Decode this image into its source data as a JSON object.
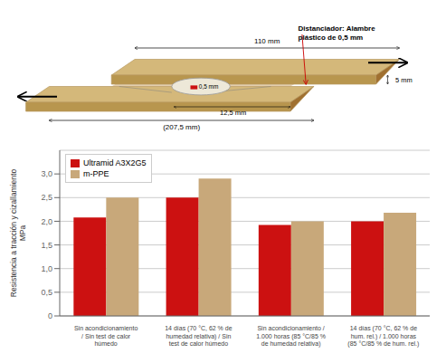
{
  "chart_data": {
    "type": "bar",
    "ylabel": "Resistencia a tracción y cizallamiento\nMPa",
    "categories": [
      "Sin acondicionamiento\n/ Sin test de calor\nhúmedo",
      "14 días (70 °C, 62 % de\nhumedad relativa) / Sin\ntest de calor húmedo",
      "Sin acondicionamiento /\n1.000 horas (85 °C/85 %\nde humedad relativa)",
      "14 días (70 °C, 62 % de\nhum. rel.) / 1.000 horas\n(85 °C/85 % de hum. rel.)"
    ],
    "series": [
      {
        "name": "Ultramid A3X2G5",
        "color": "#cc1111",
        "values": [
          2.08,
          2.5,
          1.92,
          2.0
        ]
      },
      {
        "name": "m-PPE",
        "color": "#c8a87a",
        "values": [
          2.5,
          2.9,
          2.0,
          2.18
        ]
      }
    ],
    "ylim": [
      0,
      3.5
    ],
    "yticks": [
      0,
      {
        "value": 0.5,
        "label": "0,5"
      },
      {
        "value": 1.0,
        "label": "1,0"
      },
      {
        "value": 1.5,
        "label": "1,5"
      },
      {
        "value": 2.0,
        "label": "2,0"
      },
      {
        "value": 2.5,
        "label": "2,5"
      },
      {
        "value": 3.0,
        "label": "3,0"
      }
    ],
    "grid": true,
    "legend": "upper left",
    "annotations": [
      "110 mm",
      "(207,5 mm)",
      "12,5 mm",
      "5 mm",
      "0,5 mm",
      "Distanciador: Alambre\nplástico de 0,5 mm"
    ]
  }
}
